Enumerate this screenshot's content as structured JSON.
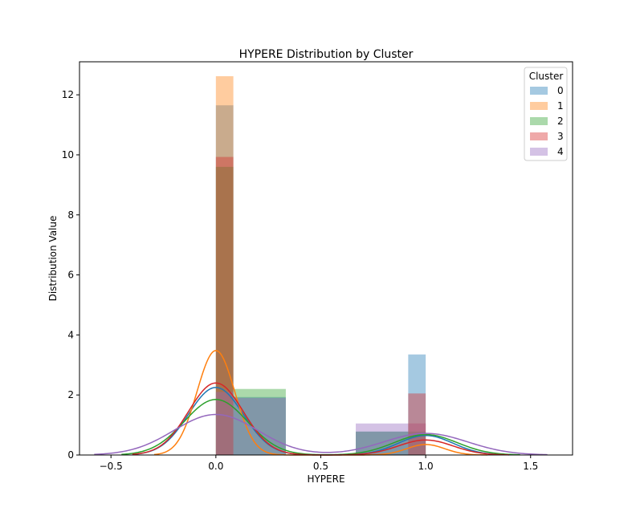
{
  "chart_data": {
    "type": "histogram_kde",
    "title": "HYPERE Distribution by Cluster",
    "xlabel": "HYPERE",
    "ylabel": "Distribution Value",
    "xlim": [
      -0.65,
      1.7
    ],
    "ylim": [
      0,
      13.1
    ],
    "xticks": [
      -0.5,
      0.0,
      0.5,
      1.0,
      1.5
    ],
    "xtick_labels": [
      "−0.5",
      "0.0",
      "0.5",
      "1.0",
      "1.5"
    ],
    "yticks": [
      0,
      2,
      4,
      6,
      8,
      10,
      12
    ],
    "grid": false,
    "legend": {
      "title": "Cluster",
      "position": "top-right"
    },
    "bar_alpha": 0.4,
    "series": [
      {
        "name": "0",
        "color": "#1f77b4",
        "bars": [
          {
            "x0": 0.0,
            "x1": 0.0833,
            "height": 11.65
          },
          {
            "x0": 0.0833,
            "x1": 0.3333,
            "height": 1.93
          },
          {
            "x0": 0.6667,
            "x1": 0.9167,
            "height": 0.78
          },
          {
            "x0": 0.9167,
            "x1": 1.0,
            "height": 3.35
          }
        ],
        "kde": {
          "peaks": [
            {
              "mu": 0.0,
              "sigma": 0.13,
              "height": 2.25
            },
            {
              "mu": 1.0,
              "sigma": 0.13,
              "height": 0.65
            }
          ]
        }
      },
      {
        "name": "1",
        "color": "#ff7f0e",
        "bars": [
          {
            "x0": 0.0,
            "x1": 0.0833,
            "height": 12.62
          },
          {
            "x0": 0.9167,
            "x1": 1.0,
            "height": 1.05
          }
        ],
        "kde": {
          "peaks": [
            {
              "mu": 0.0,
              "sigma": 0.09,
              "height": 3.48
            },
            {
              "mu": 1.0,
              "sigma": 0.09,
              "height": 0.35
            }
          ]
        }
      },
      {
        "name": "2",
        "color": "#2ca02c",
        "bars": [
          {
            "x0": 0.0,
            "x1": 0.0833,
            "height": 9.6
          },
          {
            "x0": 0.0833,
            "x1": 0.3333,
            "height": 2.2
          },
          {
            "x0": 0.6667,
            "x1": 0.9167,
            "height": 0.78
          },
          {
            "x0": 0.9167,
            "x1": 1.0,
            "height": 0.78
          }
        ],
        "kde": {
          "peaks": [
            {
              "mu": 0.0,
              "sigma": 0.15,
              "height": 1.85
            },
            {
              "mu": 1.0,
              "sigma": 0.15,
              "height": 0.68
            }
          ]
        }
      },
      {
        "name": "3",
        "color": "#d62728",
        "bars": [
          {
            "x0": 0.0,
            "x1": 0.0833,
            "height": 9.93
          },
          {
            "x0": 0.9167,
            "x1": 1.0,
            "height": 2.05
          }
        ],
        "kde": {
          "peaks": [
            {
              "mu": 0.0,
              "sigma": 0.13,
              "height": 2.4
            },
            {
              "mu": 1.0,
              "sigma": 0.13,
              "height": 0.5
            }
          ]
        }
      },
      {
        "name": "4",
        "color": "#9467bd",
        "bars": [
          {
            "x0": 0.0,
            "x1": 0.0833,
            "height": 2.1
          },
          {
            "x0": 0.0833,
            "x1": 0.3333,
            "height": 1.9
          },
          {
            "x0": 0.6667,
            "x1": 0.9167,
            "height": 1.05
          },
          {
            "x0": 0.9167,
            "x1": 1.0,
            "height": 1.05
          }
        ],
        "kde": {
          "peaks": [
            {
              "mu": 0.0,
              "sigma": 0.2,
              "height": 1.35
            },
            {
              "mu": 1.0,
              "sigma": 0.2,
              "height": 0.72
            }
          ]
        }
      }
    ]
  }
}
